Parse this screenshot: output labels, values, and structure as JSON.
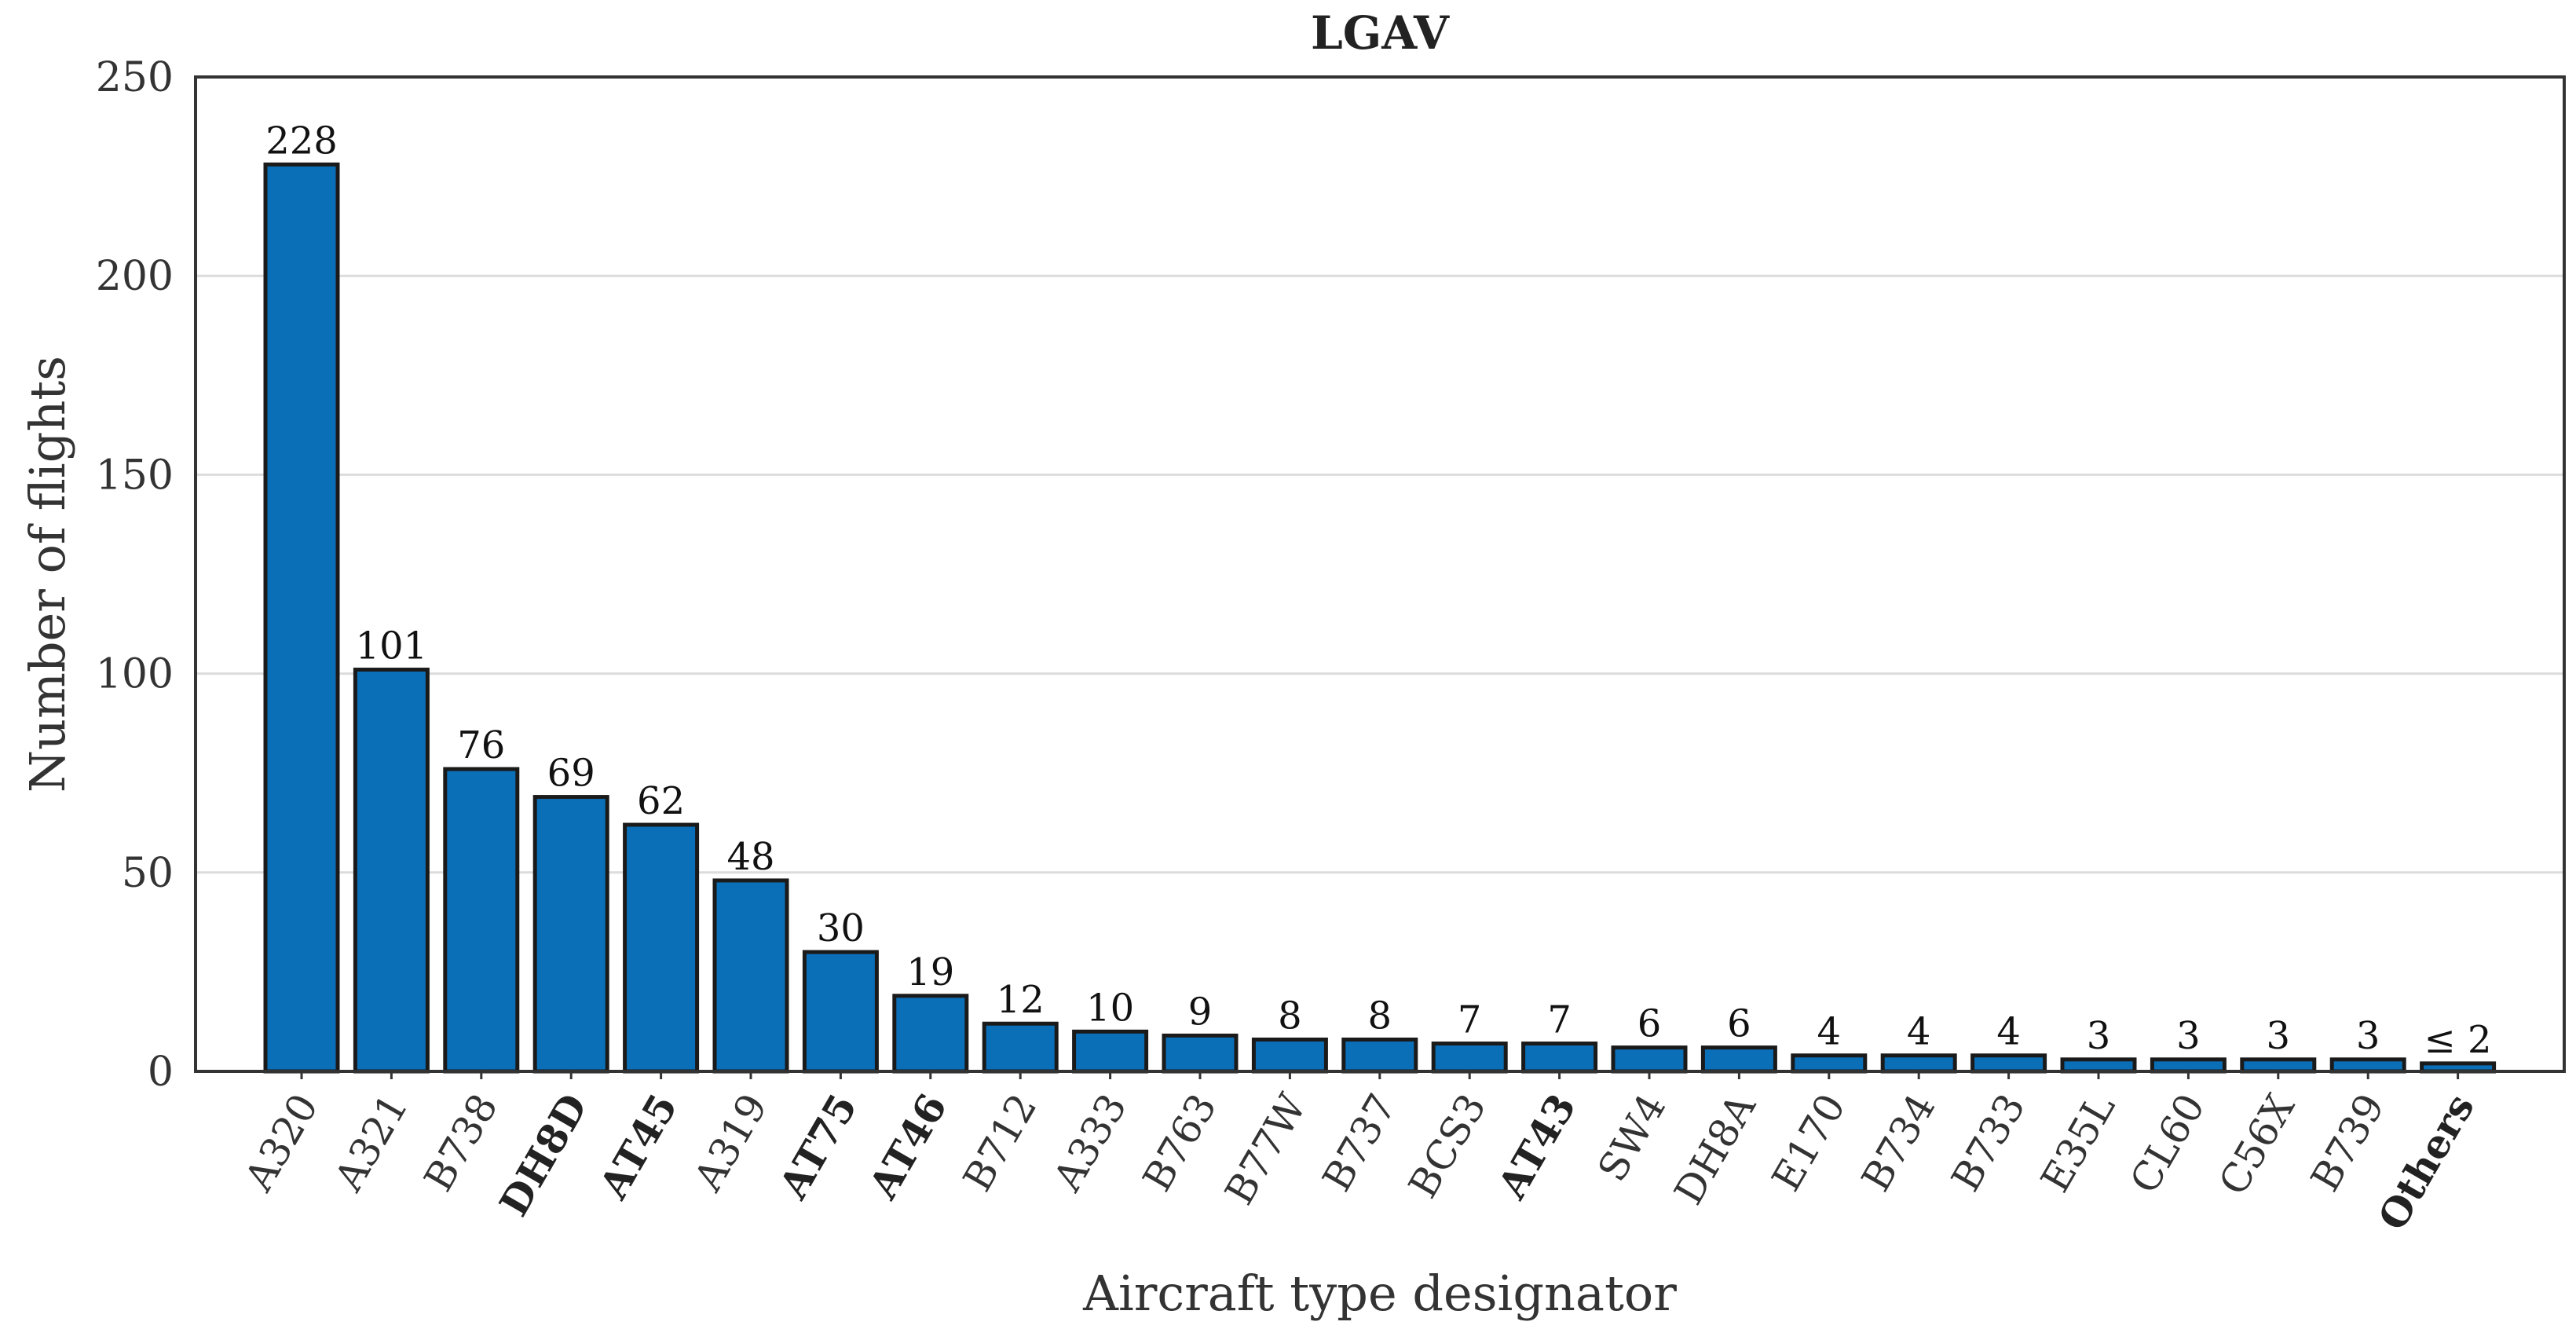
{
  "chart_data": {
    "type": "bar",
    "title": "LGAV",
    "xlabel": "Aircraft type designator",
    "ylabel": "Number of flights",
    "ylim": [
      0,
      250
    ],
    "yticks": [
      0,
      50,
      100,
      150,
      200,
      250
    ],
    "grid": true,
    "bar_color": "#0b6fb8",
    "bar_edge_color": "#1a1a1a",
    "categories": [
      "A320",
      "A321",
      "B738",
      "DH8D",
      "AT45",
      "A319",
      "AT75",
      "AT46",
      "B712",
      "A333",
      "B763",
      "B77W",
      "B737",
      "BCS3",
      "AT43",
      "SW4",
      "DH8A",
      "E170",
      "B734",
      "B733",
      "E35L",
      "CL60",
      "C56X",
      "B739",
      "Others"
    ],
    "bold_categories": [
      "DH8D",
      "AT45",
      "AT75",
      "AT46",
      "AT43",
      "Others"
    ],
    "values": [
      228,
      101,
      76,
      69,
      62,
      48,
      30,
      19,
      12,
      10,
      9,
      8,
      8,
      7,
      7,
      6,
      6,
      4,
      4,
      4,
      3,
      3,
      3,
      3,
      2
    ],
    "data_labels": [
      "228",
      "101",
      "76",
      "69",
      "62",
      "48",
      "30",
      "19",
      "12",
      "10",
      "9",
      "8",
      "8",
      "7",
      "7",
      "6",
      "6",
      "4",
      "4",
      "4",
      "3",
      "3",
      "3",
      "3",
      "≤ 2"
    ]
  }
}
